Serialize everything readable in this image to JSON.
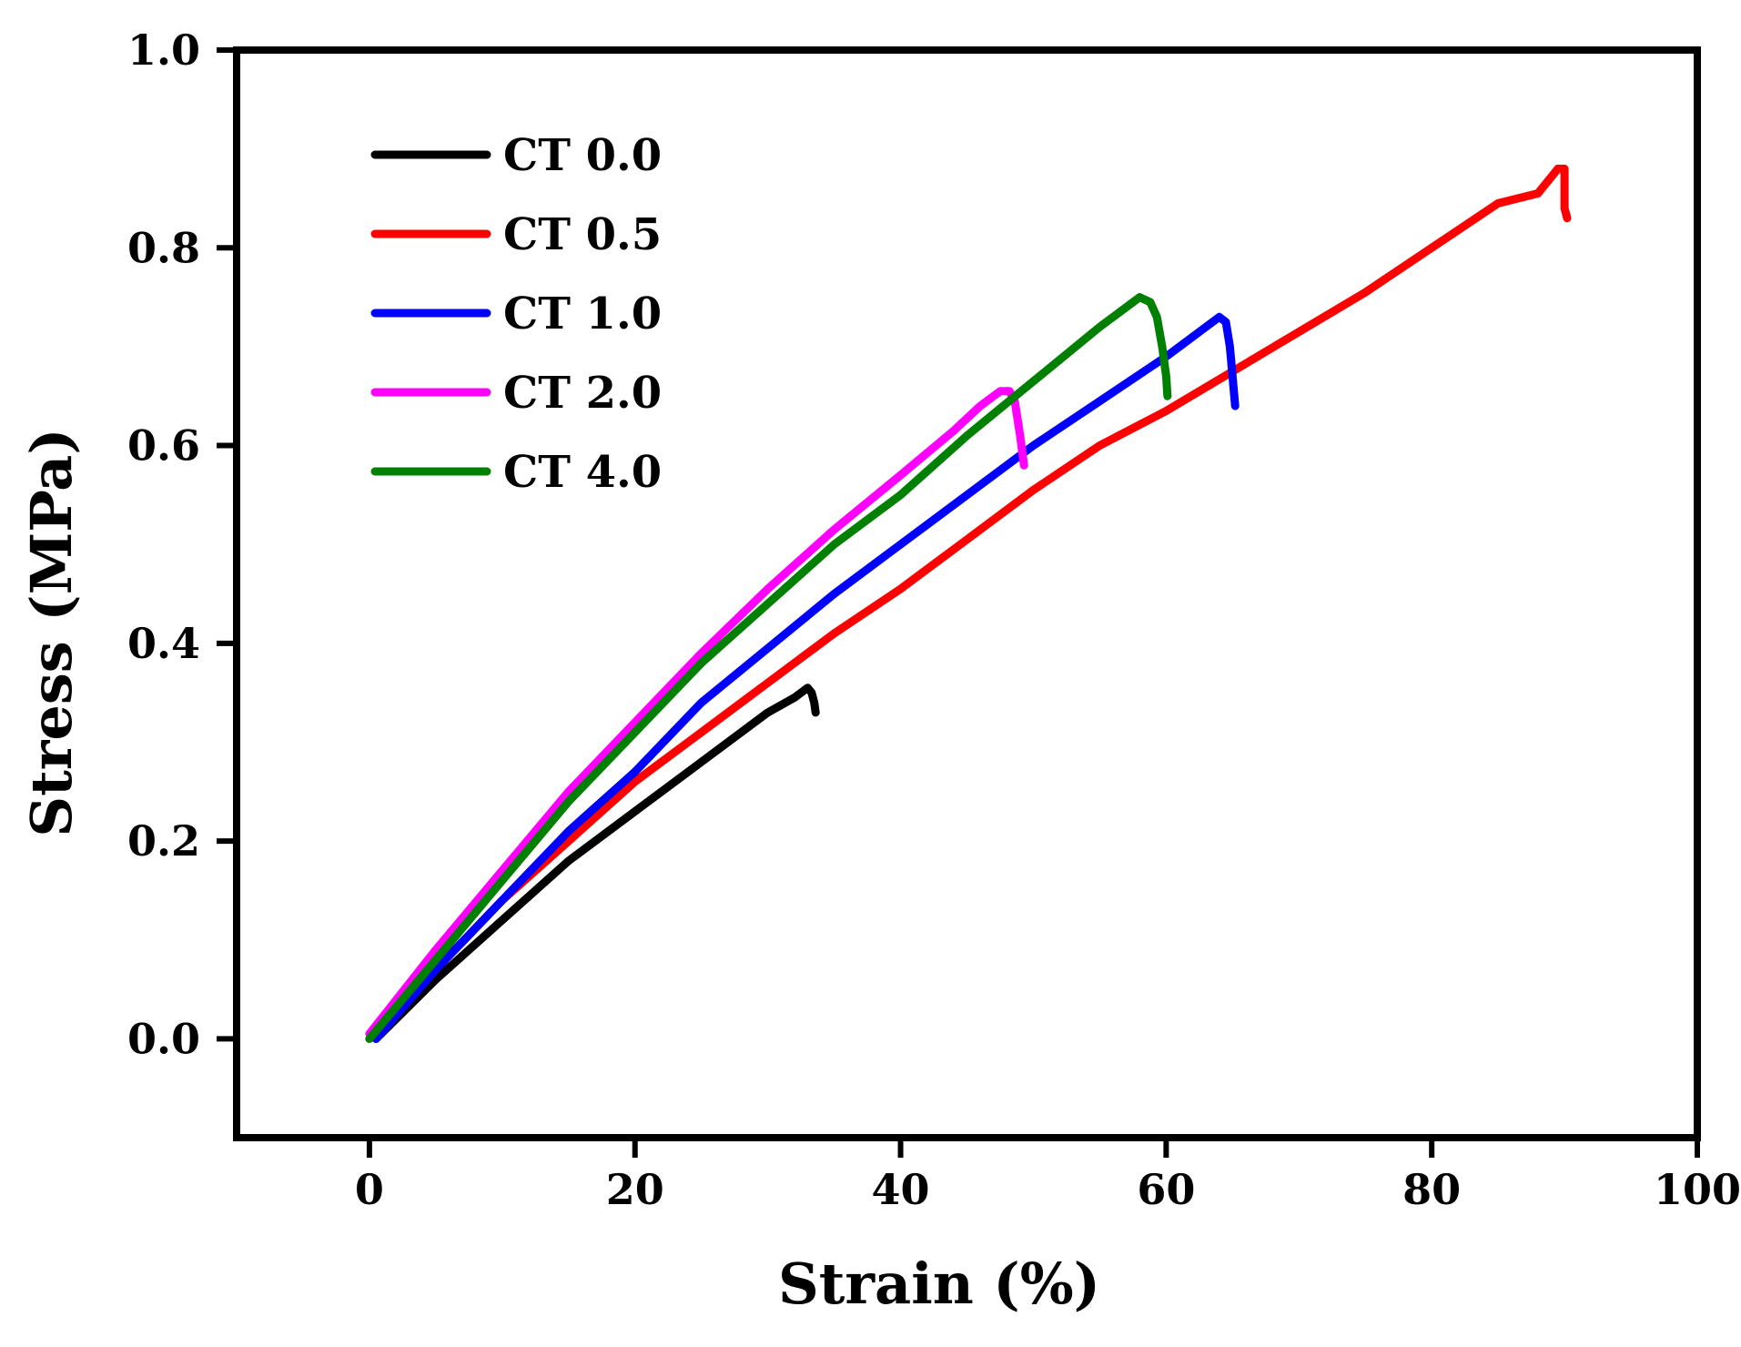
{
  "chart_data": {
    "type": "line",
    "title": "",
    "xlabel": "Strain (%)",
    "ylabel": "Stress (MPa)",
    "xlim": [
      -10,
      100
    ],
    "ylim": [
      -0.1,
      1.0
    ],
    "xticks": [
      0,
      20,
      40,
      60,
      80,
      100
    ],
    "xtick_labels": [
      "0",
      "20",
      "40",
      "60",
      "80",
      "100"
    ],
    "yticks": [
      0.0,
      0.2,
      0.4,
      0.6,
      0.8,
      1.0
    ],
    "ytick_labels": [
      "0.0",
      "0.2",
      "0.4",
      "0.6",
      "0.8",
      "1.0"
    ],
    "grid": false,
    "legend_position": "top-left",
    "series": [
      {
        "name": "CT 0.0",
        "color": "#000000",
        "x": [
          0.5,
          5,
          10,
          15,
          20,
          25,
          30,
          32,
          33,
          33.3,
          33.5,
          33.6
        ],
        "y": [
          0.0,
          0.06,
          0.12,
          0.18,
          0.23,
          0.28,
          0.33,
          0.345,
          0.355,
          0.35,
          0.34,
          0.33
        ]
      },
      {
        "name": "CT 0.5",
        "color": "#ff0000",
        "x": [
          0,
          5,
          10,
          15,
          20,
          25,
          30,
          35,
          40,
          45,
          50,
          55,
          60,
          65,
          70,
          75,
          80,
          85,
          88,
          89.5,
          90,
          90,
          90.2
        ],
        "y": [
          0.0,
          0.07,
          0.14,
          0.2,
          0.26,
          0.31,
          0.36,
          0.41,
          0.455,
          0.505,
          0.555,
          0.6,
          0.635,
          0.675,
          0.715,
          0.755,
          0.8,
          0.845,
          0.855,
          0.88,
          0.88,
          0.84,
          0.83
        ]
      },
      {
        "name": "CT 1.0",
        "color": "#0000ff",
        "x": [
          0.5,
          5,
          10,
          15,
          20,
          25,
          30,
          35,
          40,
          45,
          50,
          55,
          60,
          63,
          64,
          64.5,
          64.8,
          65,
          65.2
        ],
        "y": [
          0.0,
          0.07,
          0.14,
          0.21,
          0.27,
          0.34,
          0.395,
          0.45,
          0.5,
          0.55,
          0.6,
          0.645,
          0.69,
          0.72,
          0.73,
          0.725,
          0.7,
          0.67,
          0.64
        ]
      },
      {
        "name": "CT 2.0",
        "color": "#ff00ff",
        "x": [
          0,
          5,
          10,
          15,
          20,
          25,
          30,
          35,
          40,
          44,
          46,
          47.5,
          48.2,
          48.6,
          49,
          49.3
        ],
        "y": [
          0.005,
          0.09,
          0.17,
          0.25,
          0.32,
          0.39,
          0.455,
          0.515,
          0.57,
          0.615,
          0.64,
          0.655,
          0.655,
          0.645,
          0.61,
          0.58
        ]
      },
      {
        "name": "CT 4.0",
        "color": "#008000",
        "x": [
          0,
          5,
          10,
          15,
          20,
          25,
          30,
          35,
          40,
          45,
          50,
          55,
          57,
          58,
          58.8,
          59.3,
          59.7,
          60,
          60.1
        ],
        "y": [
          0.0,
          0.08,
          0.16,
          0.24,
          0.31,
          0.38,
          0.44,
          0.5,
          0.55,
          0.61,
          0.665,
          0.72,
          0.74,
          0.75,
          0.745,
          0.73,
          0.7,
          0.67,
          0.65
        ]
      }
    ]
  }
}
